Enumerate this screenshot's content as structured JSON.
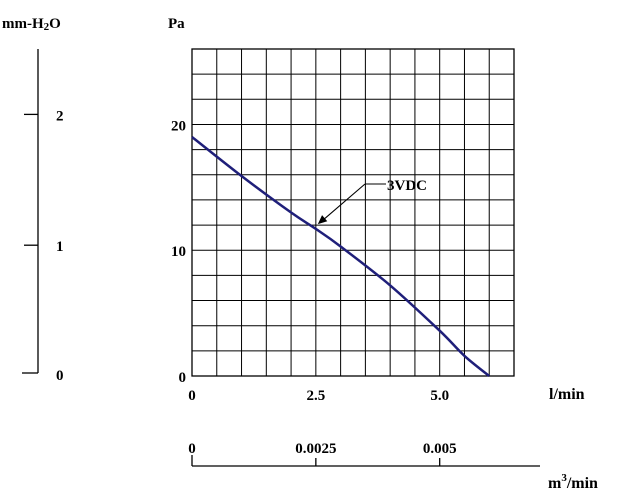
{
  "chart_data": {
    "type": "line",
    "series": [
      {
        "name": "3VDC",
        "points": [
          {
            "x": 0,
            "y": 19
          },
          {
            "x": 1,
            "y": 15.9
          },
          {
            "x": 2,
            "y": 13.0
          },
          {
            "x": 2.5,
            "y": 11.7
          },
          {
            "x": 3,
            "y": 10.3
          },
          {
            "x": 4,
            "y": 7.2
          },
          {
            "x": 5,
            "y": 3.6
          },
          {
            "x": 5.5,
            "y": 1.6
          },
          {
            "x": 6,
            "y": 0
          }
        ]
      }
    ],
    "xlim": [
      0,
      6.5
    ],
    "ylim": [
      0,
      26
    ],
    "grid": true,
    "axes": {
      "x_label": "l/min",
      "x_ticks": [
        {
          "v": 0,
          "t": "0"
        },
        {
          "v": 2.5,
          "t": "2.5"
        },
        {
          "v": 5,
          "t": "5.0"
        }
      ],
      "y_label": "Pa",
      "y_ticks": [
        {
          "v": 0,
          "t": "0"
        },
        {
          "v": 10,
          "t": "10"
        },
        {
          "v": 20,
          "t": "20"
        }
      ],
      "x2_label_base": "m",
      "x2_label_sup": "3",
      "x2_label_tail": "/min",
      "x2_ticks": [
        {
          "v": 0,
          "t": "0"
        },
        {
          "v": 0.0025,
          "t": "0.0025"
        },
        {
          "v": 0.005,
          "t": "0.005"
        }
      ],
      "y2_label_base": "mm-H",
      "y2_label_sub": "2",
      "y2_label_tail": "O",
      "y2_ticks": [
        {
          "v": 0,
          "t": "0"
        },
        {
          "v": 1,
          "t": "1"
        },
        {
          "v": 2,
          "t": "2"
        }
      ]
    },
    "annotation": {
      "text": "3VDC",
      "x": 2.5,
      "y": 12
    },
    "colors": {
      "curve": "#1f1f7a",
      "grid": "#000000"
    }
  }
}
